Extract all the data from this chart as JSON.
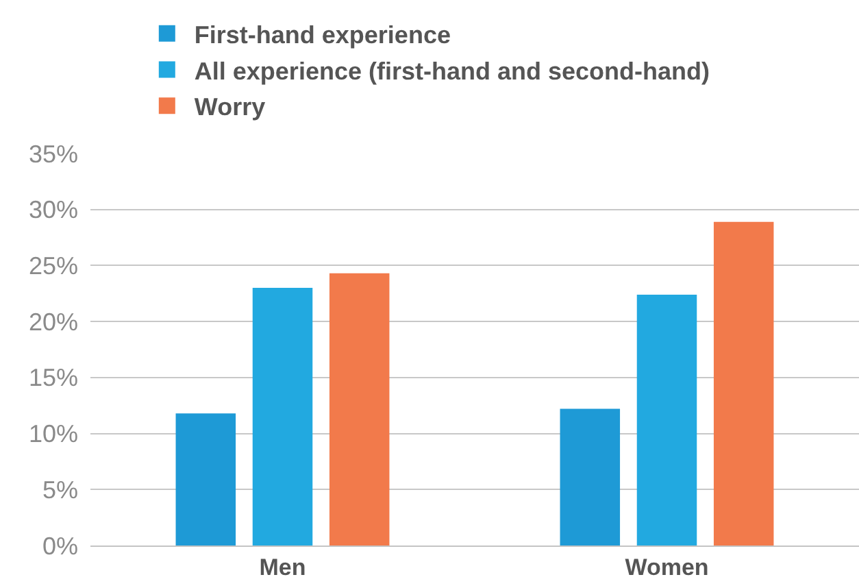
{
  "chart_data": {
    "type": "bar",
    "categories": [
      "Men",
      "Women"
    ],
    "series": [
      {
        "name": "First-hand experience",
        "color": "#1e9ad6",
        "values": [
          11.8,
          12.2
        ]
      },
      {
        "name": "All experience (first-hand and second-hand)",
        "color": "#22a9e0",
        "values": [
          23.0,
          22.4
        ]
      },
      {
        "name": "Worry",
        "color": "#f27a4b",
        "values": [
          24.3,
          28.9
        ]
      }
    ],
    "ylim": [
      0,
      35
    ],
    "yticks": [
      {
        "value": 0,
        "label": "0%"
      },
      {
        "value": 5,
        "label": "5%"
      },
      {
        "value": 10,
        "label": "10%"
      },
      {
        "value": 15,
        "label": "15%"
      },
      {
        "value": 20,
        "label": "20%"
      },
      {
        "value": 25,
        "label": "25%"
      },
      {
        "value": 30,
        "label": "30%"
      },
      {
        "value": 35,
        "label": "35%"
      }
    ],
    "grid": "y",
    "legend": "top"
  }
}
